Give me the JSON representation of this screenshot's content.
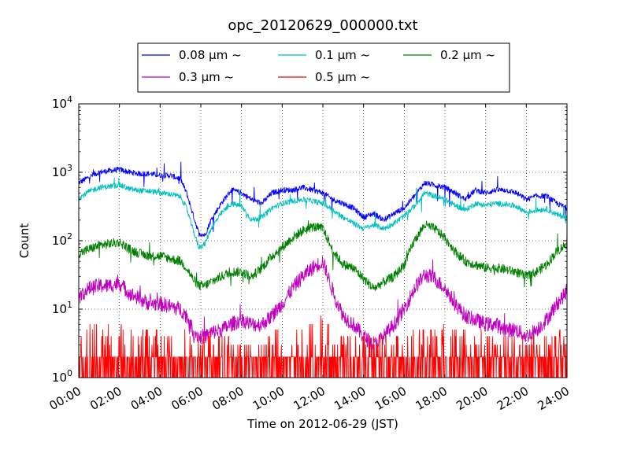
{
  "chart_data": {
    "type": "line",
    "title": "opc_20120629_000000.txt",
    "xlabel": "Time on 2012-06-29 (JST)",
    "ylabel": "Count",
    "x_ticks": [
      "00:00",
      "02:00",
      "04:00",
      "06:00",
      "08:00",
      "10:00",
      "12:00",
      "14:00",
      "16:00",
      "18:00",
      "20:00",
      "22:00",
      "24:00"
    ],
    "xlim_hours": [
      0,
      24
    ],
    "y_scale": "log",
    "ylim": [
      1,
      10000
    ],
    "y_ticks": [
      {
        "base": "10",
        "exp": "0"
      },
      {
        "base": "10",
        "exp": "1"
      },
      {
        "base": "10",
        "exp": "2"
      },
      {
        "base": "10",
        "exp": "3"
      },
      {
        "base": "10",
        "exp": "4"
      }
    ],
    "grid": true,
    "legend_position": "top-center, outside axes",
    "series": [
      {
        "name": "0.08 μm ~",
        "color": "#0000ff",
        "x_hours": [
          0,
          0.5,
          1,
          1.5,
          2,
          2.5,
          3,
          3.5,
          4,
          4.5,
          5,
          5.3,
          5.6,
          5.9,
          6.2,
          6.5,
          7,
          7.5,
          8,
          8.5,
          9,
          9.5,
          10,
          10.5,
          11,
          11.5,
          12,
          12.5,
          13,
          13.5,
          14,
          14.5,
          15,
          15.5,
          16,
          16.5,
          17,
          17.5,
          18,
          18.5,
          19,
          19.5,
          20,
          20.5,
          21,
          21.5,
          22,
          22.5,
          23,
          23.5,
          24
        ],
        "y": [
          700,
          850,
          1000,
          1050,
          1100,
          1000,
          950,
          950,
          900,
          900,
          800,
          500,
          250,
          130,
          120,
          200,
          350,
          550,
          500,
          400,
          350,
          500,
          550,
          550,
          600,
          550,
          500,
          400,
          350,
          300,
          220,
          250,
          200,
          250,
          300,
          450,
          700,
          650,
          600,
          500,
          400,
          550,
          500,
          550,
          550,
          500,
          400,
          450,
          450,
          350,
          300
        ]
      },
      {
        "name": "0.1 μm ~",
        "color": "#00bfbf",
        "x_hours": [
          0,
          0.5,
          1,
          1.5,
          2,
          2.5,
          3,
          3.5,
          4,
          4.5,
          5,
          5.3,
          5.6,
          5.9,
          6.2,
          6.5,
          7,
          7.5,
          8,
          8.5,
          9,
          9.5,
          10,
          10.5,
          11,
          11.5,
          12,
          12.5,
          13,
          13.5,
          14,
          14.5,
          15,
          15.5,
          16,
          16.5,
          17,
          17.5,
          18,
          18.5,
          19,
          19.5,
          20,
          20.5,
          21,
          21.5,
          22,
          22.5,
          23,
          23.5,
          24
        ],
        "y": [
          420,
          520,
          600,
          620,
          650,
          570,
          540,
          530,
          500,
          480,
          440,
          300,
          150,
          80,
          90,
          150,
          250,
          350,
          320,
          200,
          220,
          300,
          350,
          380,
          400,
          380,
          350,
          280,
          220,
          180,
          150,
          170,
          150,
          180,
          230,
          320,
          500,
          450,
          400,
          330,
          280,
          350,
          330,
          350,
          340,
          320,
          260,
          280,
          290,
          240,
          220
        ]
      },
      {
        "name": "0.2 μm ~",
        "color": "#008000",
        "x_hours": [
          0,
          0.5,
          1,
          1.5,
          2,
          2.5,
          3,
          3.5,
          4,
          4.5,
          5,
          5.3,
          5.6,
          5.9,
          6.2,
          6.5,
          7,
          7.5,
          8,
          8.5,
          9,
          9.5,
          10,
          10.5,
          11,
          11.5,
          12,
          12.5,
          13,
          13.5,
          14,
          14.5,
          15,
          15.5,
          16,
          16.5,
          17,
          17.5,
          18,
          18.5,
          19,
          19.5,
          20,
          20.5,
          21,
          21.5,
          22,
          22.5,
          23,
          23.5,
          24
        ],
        "y": [
          65,
          75,
          85,
          90,
          95,
          75,
          65,
          60,
          60,
          55,
          50,
          40,
          28,
          22,
          22,
          25,
          30,
          35,
          35,
          30,
          40,
          60,
          80,
          110,
          140,
          160,
          150,
          70,
          45,
          40,
          28,
          20,
          25,
          30,
          45,
          100,
          170,
          150,
          110,
          70,
          50,
          45,
          40,
          40,
          38,
          35,
          30,
          35,
          45,
          70,
          90
        ]
      },
      {
        "name": "0.3 μm ~",
        "color": "#bf00bf",
        "x_hours": [
          0,
          0.5,
          1,
          1.5,
          2,
          2.5,
          3,
          3.5,
          4,
          4.5,
          5,
          5.3,
          5.6,
          5.9,
          6.2,
          6.5,
          7,
          7.5,
          8,
          8.5,
          9,
          9.5,
          10,
          10.5,
          11,
          11.5,
          12,
          12.5,
          13,
          13.5,
          14,
          14.5,
          15,
          15.5,
          16,
          16.5,
          17,
          17.5,
          18,
          18.5,
          19,
          19.5,
          20,
          20.5,
          21,
          21.5,
          22,
          22.5,
          23,
          23.5,
          24
        ],
        "y": [
          15,
          20,
          22,
          22,
          24,
          17,
          14,
          12,
          12,
          11,
          10,
          8,
          5,
          4,
          4,
          4.5,
          5,
          6,
          7,
          6,
          6,
          8,
          12,
          20,
          30,
          40,
          50,
          18,
          8,
          6,
          4,
          3,
          4,
          6,
          10,
          20,
          32,
          28,
          20,
          12,
          8,
          7,
          6,
          6,
          5,
          5,
          4,
          5,
          7,
          12,
          18
        ]
      },
      {
        "name": "0.5 μm ~",
        "color": "#ff0000",
        "x_hours": [
          0,
          1,
          2,
          3,
          4,
          5,
          6,
          7,
          8,
          9,
          10,
          11,
          11.5,
          12,
          12.5,
          13,
          14,
          15,
          16,
          17,
          18,
          19,
          20,
          21,
          22,
          23,
          24
        ],
        "y": [
          2,
          2.5,
          2.5,
          2.2,
          2,
          1.8,
          1.5,
          1.5,
          1.5,
          1.4,
          1.6,
          2,
          3,
          3.5,
          2,
          1.5,
          1.3,
          1.3,
          1.5,
          2,
          2,
          1.8,
          1.5,
          1.4,
          1.3,
          1.5,
          1.6
        ]
      }
    ]
  }
}
